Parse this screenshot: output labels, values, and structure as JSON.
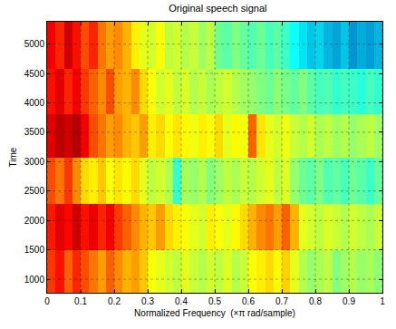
{
  "chart_data": {
    "type": "heatmap",
    "title": "Original speech signal",
    "x_label": "Normalized Frequency  (×π rad/sample)",
    "y_label": "Time",
    "xlim": [
      0,
      1
    ],
    "xticks": [
      0,
      0.1,
      0.2,
      0.3,
      0.4,
      0.5,
      0.6,
      0.7,
      0.8,
      0.9,
      1
    ],
    "ylim": [
      770,
      5380
    ],
    "yticks": [
      1000,
      1500,
      2000,
      2500,
      3000,
      3500,
      4000,
      4500,
      5000
    ],
    "grid": true,
    "color": "Jet",
    "zlim": [
      0,
      1
    ],
    "x_bins": [
      0,
      0.025,
      0.05,
      0.075,
      0.1,
      0.125,
      0.15,
      0.175,
      0.2,
      0.225,
      0.25,
      0.275,
      0.3,
      0.325,
      0.35,
      0.375,
      0.4,
      0.425,
      0.45,
      0.475,
      0.5,
      0.525,
      0.55,
      0.575,
      0.6,
      0.625,
      0.65,
      0.675,
      0.7,
      0.725,
      0.75,
      0.775,
      0.8,
      0.825,
      0.85,
      0.875,
      0.9,
      0.925,
      0.95,
      0.975,
      1
    ],
    "y_bins": [
      770,
      1490,
      2280,
      3060,
      3810,
      4580,
      5380
    ],
    "z": [
      [
        0.82,
        0.86,
        0.78,
        0.84,
        0.8,
        0.76,
        0.72,
        0.78,
        0.74,
        0.7,
        0.72,
        0.68,
        0.62,
        0.6,
        0.58,
        0.56,
        0.6,
        0.57,
        0.55,
        0.58,
        0.56,
        0.59,
        0.55,
        0.57,
        0.62,
        0.64,
        0.66,
        0.63,
        0.67,
        0.6,
        0.55,
        0.52,
        0.54,
        0.56,
        0.5,
        0.53,
        0.55,
        0.52,
        0.54,
        0.51
      ],
      [
        0.85,
        0.9,
        0.87,
        0.92,
        0.86,
        0.89,
        0.84,
        0.88,
        0.82,
        0.78,
        0.74,
        0.7,
        0.68,
        0.72,
        0.66,
        0.64,
        0.62,
        0.6,
        0.58,
        0.64,
        0.62,
        0.6,
        0.63,
        0.66,
        0.7,
        0.74,
        0.76,
        0.72,
        0.78,
        0.7,
        0.6,
        0.58,
        0.56,
        0.59,
        0.57,
        0.55,
        0.58,
        0.56,
        0.54,
        0.57
      ],
      [
        0.8,
        0.76,
        0.82,
        0.74,
        0.66,
        0.64,
        0.68,
        0.62,
        0.65,
        0.63,
        0.66,
        0.6,
        0.56,
        0.58,
        0.55,
        0.42,
        0.54,
        0.52,
        0.55,
        0.5,
        0.53,
        0.56,
        0.54,
        0.57,
        0.55,
        0.58,
        0.6,
        0.56,
        0.59,
        0.52,
        0.48,
        0.46,
        0.5,
        0.45,
        0.47,
        0.44,
        0.48,
        0.46,
        0.43,
        0.47
      ],
      [
        0.9,
        0.94,
        0.92,
        0.95,
        0.88,
        0.8,
        0.76,
        0.72,
        0.74,
        0.7,
        0.68,
        0.72,
        0.64,
        0.66,
        0.62,
        0.65,
        0.63,
        0.61,
        0.64,
        0.62,
        0.66,
        0.6,
        0.63,
        0.61,
        0.78,
        0.65,
        0.6,
        0.58,
        0.61,
        0.57,
        0.55,
        0.58,
        0.54,
        0.56,
        0.53,
        0.55,
        0.52,
        0.54,
        0.56,
        0.53
      ],
      [
        0.86,
        0.9,
        0.84,
        0.88,
        0.82,
        0.78,
        0.74,
        0.8,
        0.72,
        0.7,
        0.74,
        0.66,
        0.62,
        0.58,
        0.6,
        0.56,
        0.59,
        0.55,
        0.57,
        0.54,
        0.56,
        0.58,
        0.55,
        0.53,
        0.52,
        0.5,
        0.48,
        0.51,
        0.49,
        0.47,
        0.5,
        0.46,
        0.44,
        0.45,
        0.42,
        0.44,
        0.43,
        0.41,
        0.44,
        0.42
      ],
      [
        0.88,
        0.84,
        0.92,
        0.86,
        0.8,
        0.84,
        0.76,
        0.72,
        0.74,
        0.7,
        0.64,
        0.6,
        0.58,
        0.62,
        0.56,
        0.58,
        0.55,
        0.57,
        0.53,
        0.56,
        0.48,
        0.46,
        0.5,
        0.47,
        0.45,
        0.48,
        0.44,
        0.46,
        0.43,
        0.38,
        0.34,
        0.3,
        0.32,
        0.28,
        0.26,
        0.3,
        0.24,
        0.27,
        0.25,
        0.28
      ]
    ]
  }
}
